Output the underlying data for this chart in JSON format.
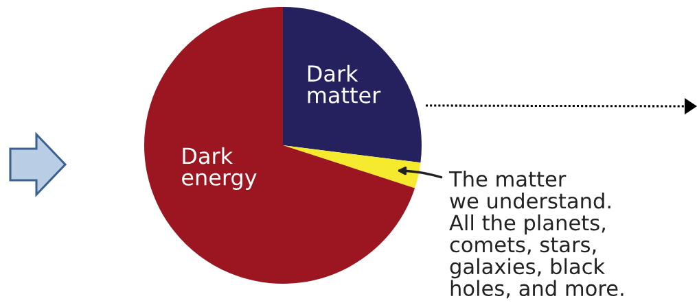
{
  "chart_data": {
    "type": "pie",
    "categories": [
      "Dark\nmatter",
      "The matter\nwe understand.\nAll the planets,\ncomets, stars,\ngalaxies, black\nholes, and more.",
      "Dark\nenergy"
    ],
    "values": [
      27,
      3,
      70
    ],
    "colors": [
      "#25215f",
      "#f5ea2e",
      "#9b1620"
    ]
  }
}
